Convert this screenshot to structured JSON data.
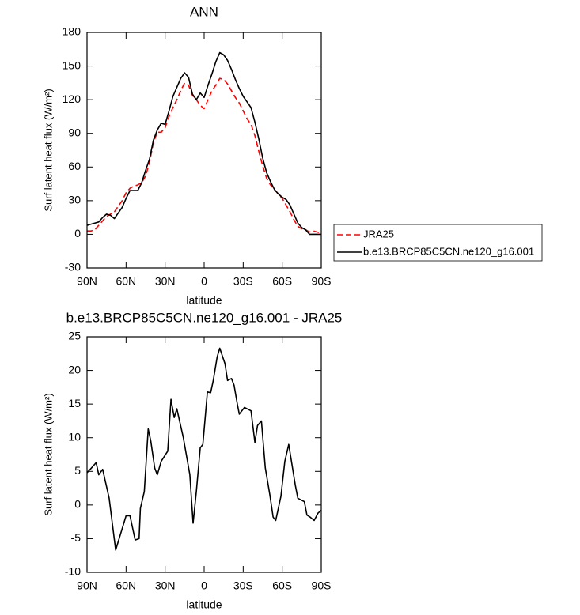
{
  "chart_data": [
    {
      "type": "line",
      "title": "ANN",
      "x_label": "latitude",
      "y_label": "Surf latent heat flux (W/m²)",
      "x": [
        90,
        87,
        84,
        81,
        78,
        75,
        72,
        69,
        66,
        63,
        60,
        57,
        54,
        51,
        48,
        45,
        42,
        39,
        36,
        33,
        30,
        27,
        24,
        21,
        18,
        15,
        12,
        9,
        6,
        3,
        0,
        -3,
        -6,
        -9,
        -12,
        -15,
        -18,
        -21,
        -24,
        -27,
        -30,
        -33,
        -36,
        -39,
        -42,
        -45,
        -48,
        -51,
        -54,
        -57,
        -60,
        -63,
        -66,
        -69,
        -72,
        -75,
        -78,
        -81,
        -84,
        -87,
        -90
      ],
      "series": [
        {
          "name": "JRA25",
          "color": "#ff0000",
          "style": "dashed",
          "values": [
            3,
            3,
            4,
            8,
            12,
            16,
            18,
            20,
            25,
            30,
            37,
            41,
            43,
            44,
            46,
            52,
            64,
            82,
            91,
            91,
            95,
            105,
            113,
            120,
            128,
            135,
            133,
            124,
            120,
            115,
            112,
            120,
            128,
            133,
            139,
            138,
            134,
            128,
            122,
            117,
            110,
            103,
            98,
            88,
            74,
            61,
            50,
            44,
            40,
            36,
            32,
            26,
            20,
            13,
            7,
            5,
            4,
            2,
            3,
            2,
            1
          ]
        },
        {
          "name": "b.e13.BRCP85C5CN.ne120_g16.001",
          "color": "#000000",
          "style": "solid",
          "values": [
            8,
            9,
            10,
            11,
            15,
            18,
            17,
            14,
            19,
            24,
            32,
            39,
            39,
            39,
            46,
            57,
            67,
            84,
            93,
            99,
            98,
            110,
            123,
            131,
            139,
            144,
            140,
            125,
            120,
            126,
            122,
            133,
            143,
            154,
            162,
            160,
            155,
            147,
            138,
            130,
            123,
            118,
            113,
            100,
            85,
            68,
            55,
            47,
            40,
            36,
            33,
            31,
            26,
            18,
            10,
            6,
            4,
            0,
            0,
            0,
            0
          ]
        }
      ],
      "xlim": [
        90,
        -90
      ],
      "xticks": [
        {
          "value": 90,
          "label": "90N"
        },
        {
          "value": 60,
          "label": "60N"
        },
        {
          "value": 30,
          "label": "30N"
        },
        0,
        {
          "value": -30,
          "label": "30S"
        },
        {
          "value": -60,
          "label": "60S"
        },
        {
          "value": -90,
          "label": "90S"
        }
      ],
      "ylim": [
        -30,
        180
      ],
      "yticks": [
        -30,
        0,
        30,
        60,
        90,
        120,
        150,
        180
      ],
      "legend": "right"
    },
    {
      "type": "line",
      "title": "b.e13.BRCP85C5CN.ne120_g16.001 - JRA25",
      "x_label": "latitude",
      "y_label": "Surf latent heat flux (W/m²)",
      "x": [
        90,
        88,
        83,
        81,
        78,
        73,
        68,
        60,
        57,
        53,
        50,
        49,
        46,
        43,
        41,
        38,
        36,
        33,
        28,
        25.5,
        23,
        21,
        16,
        11,
        8.5,
        6,
        3,
        1,
        -2.5,
        -5,
        -7,
        -10,
        -12,
        -16,
        -18,
        -21,
        -23,
        -25.5,
        -27,
        -31,
        -36,
        -39,
        -41,
        -44,
        -47,
        -50.5,
        -53,
        -55,
        -59,
        -62,
        -65,
        -70,
        -72,
        -77,
        -79,
        -81.5,
        -84.5,
        -87.5,
        -90
      ],
      "series": [
        {
          "color": "#000000",
          "style": "solid",
          "values": [
            4.8,
            5.2,
            6.3,
            4.5,
            5.3,
            1,
            -6.7,
            -1.6,
            -1.6,
            -5.2,
            -5,
            -0.5,
            2,
            11.3,
            9.5,
            5.5,
            4.5,
            6.5,
            8,
            15.7,
            13,
            14.3,
            10,
            4.5,
            -2.7,
            2,
            8.5,
            9,
            16.8,
            16.7,
            18.5,
            22,
            23.3,
            21,
            18.5,
            18.8,
            17.8,
            15,
            13.5,
            14.5,
            14,
            9.3,
            11.8,
            12.5,
            5.5,
            1.5,
            -1.8,
            -2.3,
            1.3,
            6.5,
            9,
            3,
            1,
            0.5,
            -1.5,
            -1.8,
            -2.3,
            -1.2,
            -0.8
          ]
        }
      ],
      "xlim": [
        90,
        -90
      ],
      "xticks": [
        {
          "value": 90,
          "label": "90N"
        },
        {
          "value": 60,
          "label": "60N"
        },
        {
          "value": 30,
          "label": "30N"
        },
        0,
        {
          "value": -30,
          "label": "30S"
        },
        {
          "value": -60,
          "label": "60S"
        },
        {
          "value": -90,
          "label": "90S"
        }
      ],
      "ylim": [
        -10,
        25
      ],
      "yticks": [
        -10,
        -5,
        0,
        5,
        10,
        15,
        20,
        25
      ]
    }
  ]
}
